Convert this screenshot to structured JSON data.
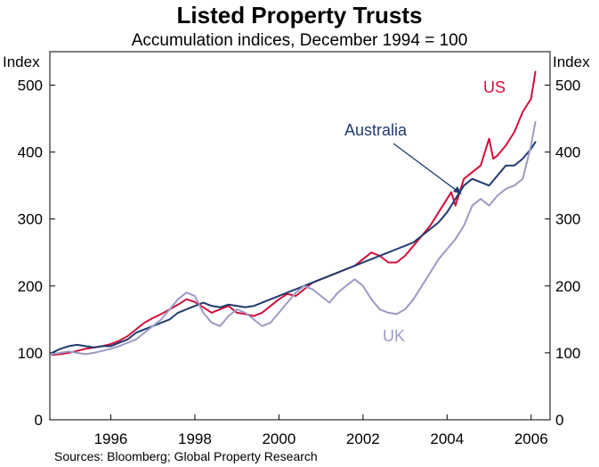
{
  "chart_data": {
    "type": "line",
    "title": "Listed Property Trusts",
    "subtitle": "Accumulation indices, December 1994 = 100",
    "ylabel_left": "Index",
    "ylabel_right": "Index",
    "ylim": [
      0,
      550
    ],
    "yticks": [
      0,
      100,
      200,
      300,
      400,
      500
    ],
    "xlim": [
      1994.55,
      2006.45
    ],
    "xticks": [
      1996,
      1998,
      2000,
      2002,
      2004,
      2006
    ],
    "series": [
      {
        "name": "US",
        "color": "#d0103a",
        "x": [
          1994.6,
          1994.8,
          1995.0,
          1995.2,
          1995.4,
          1995.6,
          1995.8,
          1996.0,
          1996.2,
          1996.4,
          1996.6,
          1996.8,
          1997.0,
          1997.2,
          1997.4,
          1997.6,
          1997.8,
          1998.0,
          1998.2,
          1998.4,
          1998.6,
          1998.8,
          1999.0,
          1999.2,
          1999.4,
          1999.6,
          1999.8,
          2000.0,
          2000.2,
          2000.4,
          2000.6,
          2000.8,
          2001.0,
          2001.2,
          2001.4,
          2001.6,
          2001.8,
          2002.0,
          2002.2,
          2002.4,
          2002.6,
          2002.8,
          2003.0,
          2003.2,
          2003.4,
          2003.6,
          2003.8,
          2004.0,
          2004.1,
          2004.2,
          2004.4,
          2004.6,
          2004.8,
          2005.0,
          2005.1,
          2005.2,
          2005.4,
          2005.6,
          2005.8,
          2006.0,
          2006.1
        ],
        "values": [
          97,
          98,
          100,
          103,
          106,
          108,
          110,
          113,
          118,
          125,
          135,
          145,
          152,
          158,
          165,
          172,
          180,
          176,
          168,
          160,
          165,
          170,
          160,
          158,
          155,
          160,
          170,
          180,
          188,
          185,
          195,
          205,
          210,
          215,
          220,
          225,
          230,
          240,
          250,
          245,
          235,
          235,
          245,
          260,
          275,
          290,
          310,
          330,
          340,
          320,
          360,
          370,
          380,
          420,
          390,
          395,
          410,
          430,
          460,
          480,
          520
        ]
      },
      {
        "name": "Australia",
        "color": "#1f3a6e",
        "x": [
          1994.6,
          1994.8,
          1995.0,
          1995.2,
          1995.4,
          1995.6,
          1995.8,
          1996.0,
          1996.2,
          1996.4,
          1996.6,
          1996.8,
          1997.0,
          1997.2,
          1997.4,
          1997.6,
          1997.8,
          1998.0,
          1998.2,
          1998.4,
          1998.6,
          1998.8,
          1999.0,
          1999.2,
          1999.4,
          1999.6,
          1999.8,
          2000.0,
          2000.2,
          2000.4,
          2000.6,
          2000.8,
          2001.0,
          2001.2,
          2001.4,
          2001.6,
          2001.8,
          2002.0,
          2002.2,
          2002.4,
          2002.6,
          2002.8,
          2003.0,
          2003.2,
          2003.4,
          2003.6,
          2003.8,
          2004.0,
          2004.2,
          2004.4,
          2004.6,
          2004.8,
          2005.0,
          2005.2,
          2005.4,
          2005.6,
          2005.8,
          2006.0,
          2006.1
        ],
        "values": [
          100,
          106,
          110,
          112,
          110,
          108,
          110,
          110,
          115,
          120,
          130,
          135,
          140,
          145,
          150,
          160,
          165,
          170,
          175,
          170,
          168,
          172,
          170,
          168,
          170,
          175,
          180,
          185,
          190,
          195,
          200,
          205,
          210,
          215,
          220,
          225,
          230,
          235,
          240,
          245,
          250,
          255,
          260,
          265,
          275,
          285,
          295,
          310,
          330,
          350,
          360,
          355,
          350,
          365,
          380,
          380,
          390,
          405,
          415
        ]
      },
      {
        "name": "UK",
        "color": "#9b9bc5",
        "x": [
          1994.6,
          1994.8,
          1995.0,
          1995.2,
          1995.4,
          1995.6,
          1995.8,
          1996.0,
          1996.2,
          1996.4,
          1996.6,
          1996.8,
          1997.0,
          1997.2,
          1997.4,
          1997.6,
          1997.8,
          1998.0,
          1998.2,
          1998.4,
          1998.6,
          1998.8,
          1999.0,
          1999.2,
          1999.4,
          1999.6,
          1999.8,
          2000.0,
          2000.2,
          2000.4,
          2000.6,
          2000.8,
          2001.0,
          2001.2,
          2001.4,
          2001.6,
          2001.8,
          2002.0,
          2002.2,
          2002.4,
          2002.6,
          2002.8,
          2003.0,
          2003.2,
          2003.4,
          2003.6,
          2003.8,
          2004.0,
          2004.2,
          2004.4,
          2004.6,
          2004.8,
          2005.0,
          2005.2,
          2005.4,
          2005.6,
          2005.8,
          2006.0,
          2006.1
        ],
        "values": [
          98,
          100,
          102,
          100,
          98,
          100,
          103,
          106,
          110,
          115,
          120,
          130,
          140,
          150,
          165,
          180,
          190,
          185,
          160,
          145,
          140,
          155,
          165,
          160,
          150,
          140,
          145,
          160,
          175,
          190,
          200,
          195,
          185,
          175,
          190,
          200,
          210,
          200,
          180,
          165,
          160,
          158,
          165,
          180,
          200,
          220,
          240,
          255,
          270,
          290,
          320,
          330,
          320,
          335,
          345,
          350,
          360,
          410,
          445
        ]
      }
    ],
    "annotations": [
      {
        "text": "US",
        "series": "US"
      },
      {
        "text": "Australia",
        "series": "Australia",
        "arrow": true
      },
      {
        "text": "UK",
        "series": "UK"
      }
    ],
    "source": "Sources: Bloomberg; Global Property Research"
  }
}
